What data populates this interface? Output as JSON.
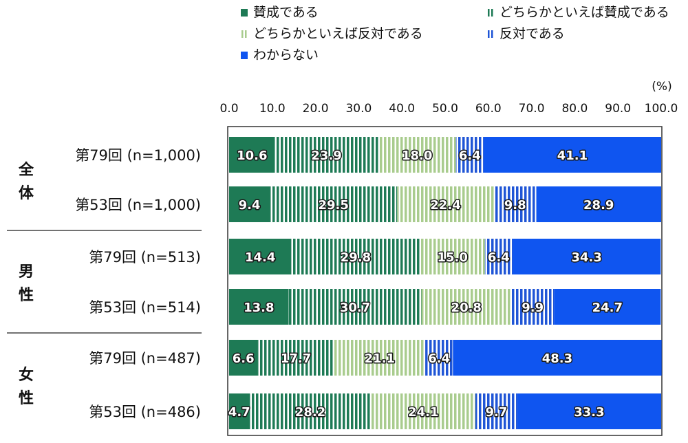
{
  "chart_data": {
    "type": "bar",
    "orientation": "horizontal",
    "stacked": true,
    "unit": "(%)",
    "xlim": [
      0,
      100
    ],
    "ticks": [
      "0.0",
      "10.0",
      "20.0",
      "30.0",
      "40.0",
      "50.0",
      "60.0",
      "70.0",
      "80.0",
      "90.0",
      "100.0"
    ],
    "legend": [
      {
        "name": "賛成である",
        "color": "#1e7a55",
        "pattern": "solid-dark-green",
        "icon": "solid-square"
      },
      {
        "name": "どちらかといえば賛成である",
        "color": "#1e7a55",
        "pattern": "vertical-stripes-dark-green",
        "icon": "striped-square"
      },
      {
        "name": "どちらかといえば反対である",
        "color": "#a9cc8e",
        "pattern": "vertical-stripes-light-green",
        "icon": "striped-square"
      },
      {
        "name": "反対である",
        "color": "#1f55d6",
        "pattern": "vertical-stripes-blue",
        "icon": "striped-square"
      },
      {
        "name": "わからない",
        "color": "#0f55f0",
        "pattern": "solid-blue",
        "icon": "solid-square"
      }
    ],
    "groups": [
      {
        "label": "全\n体",
        "chars": [
          "全",
          "体"
        ]
      },
      {
        "label": "男\n性",
        "chars": [
          "男",
          "性"
        ]
      },
      {
        "label": "女\n性",
        "chars": [
          "女",
          "性"
        ]
      }
    ],
    "rows": [
      {
        "group": 0,
        "label": "第79回 (n=1,000)",
        "values": [
          10.6,
          23.9,
          18.0,
          6.4,
          41.1
        ],
        "labels": [
          "10.6",
          "23.9",
          "18.0",
          "6.4",
          "41.1"
        ]
      },
      {
        "group": 0,
        "label": "第53回 (n=1,000)",
        "values": [
          9.4,
          29.5,
          22.4,
          9.8,
          28.9
        ],
        "labels": [
          "9.4",
          "29.5",
          "22.4",
          "9.8",
          "28.9"
        ]
      },
      {
        "group": 1,
        "label": "第79回 (n=513)",
        "values": [
          14.4,
          29.8,
          15.0,
          6.4,
          34.3
        ],
        "labels": [
          "14.4",
          "29.8",
          "15.0",
          "6.4",
          "34.3"
        ]
      },
      {
        "group": 1,
        "label": "第53回 (n=514)",
        "values": [
          13.8,
          30.7,
          20.8,
          9.9,
          24.7
        ],
        "labels": [
          "13.8",
          "30.7",
          "20.8",
          "9.9",
          "24.7"
        ]
      },
      {
        "group": 2,
        "label": "第79回 (n=487)",
        "values": [
          6.6,
          17.7,
          21.1,
          6.4,
          48.3
        ],
        "labels": [
          "6.6",
          "17.7",
          "21.1",
          "6.4",
          "48.3"
        ]
      },
      {
        "group": 2,
        "label": "第53回 (n=486)",
        "values": [
          4.7,
          28.2,
          24.1,
          9.7,
          33.3
        ],
        "labels": [
          "4.7",
          "28.2",
          "24.1",
          "9.7",
          "33.3"
        ]
      }
    ]
  }
}
